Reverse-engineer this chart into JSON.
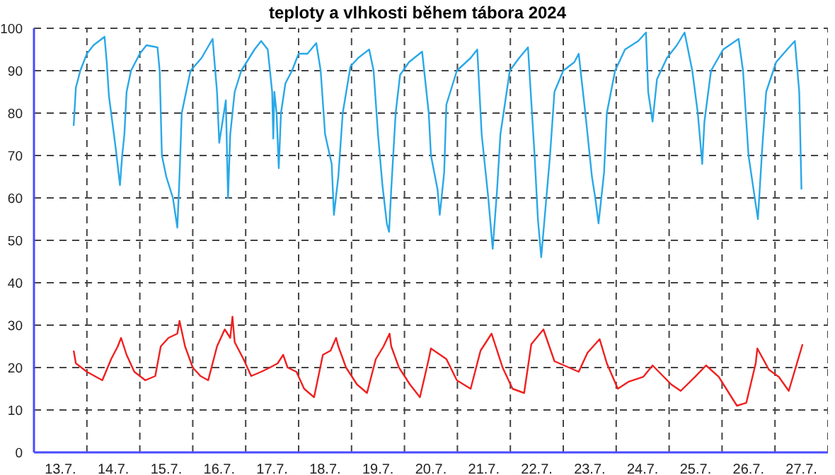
{
  "chart_data": {
    "type": "line",
    "title": "teploty a vlhkosti během tábora 2024",
    "xlim": [
      "2024-07-13T00:00",
      "2024-07-28T00:00"
    ],
    "xticks": [
      {
        "value": "2024-07-13T12:00",
        "label": "13.7."
      },
      {
        "value": "2024-07-14T00:00",
        "label": null
      },
      {
        "value": "2024-07-14T12:00",
        "label": "14.7."
      },
      {
        "value": "2024-07-15T00:00",
        "label": null
      },
      {
        "value": "2024-07-15T12:00",
        "label": "15.7."
      },
      {
        "value": "2024-07-16T00:00",
        "label": null
      },
      {
        "value": "2024-07-16T12:00",
        "label": "16.7."
      },
      {
        "value": "2024-07-17T00:00",
        "label": null
      },
      {
        "value": "2024-07-17T12:00",
        "label": "17.7."
      },
      {
        "value": "2024-07-18T00:00",
        "label": null
      },
      {
        "value": "2024-07-18T12:00",
        "label": "18.7."
      },
      {
        "value": "2024-07-19T00:00",
        "label": null
      },
      {
        "value": "2024-07-19T12:00",
        "label": "19.7."
      },
      {
        "value": "2024-07-20T00:00",
        "label": null
      },
      {
        "value": "2024-07-20T12:00",
        "label": "20.7."
      },
      {
        "value": "2024-07-21T00:00",
        "label": null
      },
      {
        "value": "2024-07-21T12:00",
        "label": "21.7."
      },
      {
        "value": "2024-07-22T00:00",
        "label": null
      },
      {
        "value": "2024-07-22T12:00",
        "label": "22.7."
      },
      {
        "value": "2024-07-23T00:00",
        "label": null
      },
      {
        "value": "2024-07-23T12:00",
        "label": "23.7."
      },
      {
        "value": "2024-07-24T00:00",
        "label": null
      },
      {
        "value": "2024-07-24T12:00",
        "label": "24.7."
      },
      {
        "value": "2024-07-25T00:00",
        "label": null
      },
      {
        "value": "2024-07-25T12:00",
        "label": "25.7."
      },
      {
        "value": "2024-07-26T00:00",
        "label": null
      },
      {
        "value": "2024-07-26T12:00",
        "label": "26.7."
      },
      {
        "value": "2024-07-27T00:00",
        "label": null
      },
      {
        "value": "2024-07-27T12:00",
        "label": "27.7."
      },
      {
        "value": "2024-07-28T00:00",
        "label": null
      }
    ],
    "ylim": [
      0,
      100
    ],
    "yticks": [
      0,
      10,
      20,
      30,
      40,
      50,
      60,
      70,
      80,
      90,
      100
    ],
    "grid": true,
    "line_style": "solid",
    "series": [
      {
        "color": "#29a8e8",
        "x": [
          "2024-07-13T18:00",
          "2024-07-13T19:00",
          "2024-07-13T21:00",
          "2024-07-14T00:00",
          "2024-07-14T03:00",
          "2024-07-14T08:00",
          "2024-07-14T09:00",
          "2024-07-14T10:00",
          "2024-07-14T12:00",
          "2024-07-14T13:00",
          "2024-07-14T15:00",
          "2024-07-14T16:00",
          "2024-07-14T17:00",
          "2024-07-14T18:00",
          "2024-07-14T20:00",
          "2024-07-15T00:00",
          "2024-07-15T03:00",
          "2024-07-15T08:00",
          "2024-07-15T09:00",
          "2024-07-15T10:00",
          "2024-07-15T12:00",
          "2024-07-15T15:00",
          "2024-07-15T17:00",
          "2024-07-15T18:00",
          "2024-07-15T19:00",
          "2024-07-15T23:00",
          "2024-07-16T04:00",
          "2024-07-16T09:00",
          "2024-07-16T11:00",
          "2024-07-16T12:00",
          "2024-07-16T15:00",
          "2024-07-16T16:00",
          "2024-07-16T17:00",
          "2024-07-16T19:00",
          "2024-07-16T22:00",
          "2024-07-17T04:00",
          "2024-07-17T07:00",
          "2024-07-17T10:00",
          "2024-07-17T12:00",
          "2024-07-17T12:30",
          "2024-07-17T13:00",
          "2024-07-17T14:00",
          "2024-07-17T15:00",
          "2024-07-17T16:00",
          "2024-07-17T18:00",
          "2024-07-17T21:00",
          "2024-07-18T00:00",
          "2024-07-18T04:00",
          "2024-07-18T08:00",
          "2024-07-18T10:00",
          "2024-07-18T12:00",
          "2024-07-18T15:00",
          "2024-07-18T16:00",
          "2024-07-18T18:00",
          "2024-07-18T20:00",
          "2024-07-18T23:30",
          "2024-07-19T03:00",
          "2024-07-19T08:00",
          "2024-07-19T10:00",
          "2024-07-19T12:00",
          "2024-07-19T14:00",
          "2024-07-19T16:00",
          "2024-07-19T17:00",
          "2024-07-19T18:00",
          "2024-07-19T20:00",
          "2024-07-19T22:00",
          "2024-07-20T02:00",
          "2024-07-20T08:00",
          "2024-07-20T11:00",
          "2024-07-20T12:00",
          "2024-07-20T15:00",
          "2024-07-20T16:00",
          "2024-07-20T18:00",
          "2024-07-20T19:00",
          "2024-07-20T23:45",
          "2024-07-21T06:00",
          "2024-07-21T09:00",
          "2024-07-21T11:00",
          "2024-07-21T14:00",
          "2024-07-21T16:00",
          "2024-07-21T18:00",
          "2024-07-21T19:30",
          "2024-07-21T23:45",
          "2024-07-22T04:00",
          "2024-07-22T08:00",
          "2024-07-22T11:00",
          "2024-07-22T12:30",
          "2024-07-22T14:00",
          "2024-07-22T16:00",
          "2024-07-22T18:00",
          "2024-07-22T20:00",
          "2024-07-23T00:00",
          "2024-07-23T05:00",
          "2024-07-23T07:00",
          "2024-07-23T10:00",
          "2024-07-23T13:00",
          "2024-07-23T14:30",
          "2024-07-23T16:00",
          "2024-07-23T18:30",
          "2024-07-23T19:45",
          "2024-07-23T23:30",
          "2024-07-24T04:00",
          "2024-07-24T10:00",
          "2024-07-24T13:30",
          "2024-07-24T14:30",
          "2024-07-24T16:30",
          "2024-07-24T18:30",
          "2024-07-24T23:00",
          "2024-07-25T03:30",
          "2024-07-25T07:00",
          "2024-07-25T10:30",
          "2024-07-25T13:00",
          "2024-07-25T15:00",
          "2024-07-25T16:00",
          "2024-07-25T19:00",
          "2024-07-26T00:30",
          "2024-07-26T07:30",
          "2024-07-26T09:30",
          "2024-07-26T12:00",
          "2024-07-26T16:15",
          "2024-07-26T18:15",
          "2024-07-26T20:00",
          "2024-07-27T00:30",
          "2024-07-27T05:30",
          "2024-07-27T09:00",
          "2024-07-27T11:00",
          "2024-07-27T12:00"
        ],
        "values": [
          77,
          86,
          90,
          94,
          96,
          98,
          92,
          84,
          76,
          72,
          63,
          70,
          75,
          85,
          90,
          94,
          96,
          95.5,
          90,
          70,
          65,
          60,
          53,
          65,
          80,
          90,
          93,
          97.5,
          85,
          73,
          83,
          60,
          75,
          85,
          90,
          95,
          97,
          95,
          85,
          74,
          85,
          80,
          67,
          80,
          87,
          90,
          94,
          94,
          96.5,
          90,
          75,
          68,
          56,
          65,
          80,
          91,
          93,
          95,
          90,
          75,
          63,
          54,
          52,
          62,
          80,
          89,
          92,
          94.5,
          80,
          70,
          62,
          56,
          66,
          82,
          90,
          93,
          95,
          75,
          60,
          48,
          62,
          75,
          90,
          93,
          95.5,
          70,
          55,
          46,
          58,
          70,
          85,
          90,
          92,
          94,
          80,
          65,
          60,
          54,
          66,
          80,
          90,
          95,
          97,
          99,
          85,
          78,
          88,
          93,
          96,
          99,
          90,
          80,
          68,
          78,
          90,
          95,
          97.5,
          90,
          70,
          55,
          72,
          85,
          92,
          95,
          97,
          85,
          62
        ]
      },
      {
        "color": "#f02020",
        "x": [
          "2024-07-13T18:00",
          "2024-07-13T19:00",
          "2024-07-14T00:00",
          "2024-07-14T07:00",
          "2024-07-14T11:00",
          "2024-07-14T14:00",
          "2024-07-14T15:30",
          "2024-07-14T18:00",
          "2024-07-14T21:30",
          "2024-07-15T02:30",
          "2024-07-15T07:00",
          "2024-07-15T09:30",
          "2024-07-15T13:00",
          "2024-07-15T17:00",
          "2024-07-15T18:00",
          "2024-07-15T20:30",
          "2024-07-16T00:00",
          "2024-07-16T03:30",
          "2024-07-16T07:00",
          "2024-07-16T11:00",
          "2024-07-16T14:30",
          "2024-07-16T17:00",
          "2024-07-16T18:00",
          "2024-07-16T19:00",
          "2024-07-16T23:00",
          "2024-07-17T02:30",
          "2024-07-17T07:00",
          "2024-07-17T11:00",
          "2024-07-17T14:30",
          "2024-07-17T17:00",
          "2024-07-17T19:00",
          "2024-07-17T23:00",
          "2024-07-18T02:30",
          "2024-07-18T07:00",
          "2024-07-18T11:00",
          "2024-07-18T14:30",
          "2024-07-18T17:00",
          "2024-07-18T18:00",
          "2024-07-18T21:30",
          "2024-07-19T02:30",
          "2024-07-19T07:00",
          "2024-07-19T11:00",
          "2024-07-19T14:30",
          "2024-07-19T17:15",
          "2024-07-19T18:00",
          "2024-07-19T21:30",
          "2024-07-20T02:30",
          "2024-07-20T07:00",
          "2024-07-20T11:00",
          "2024-07-20T12:00",
          "2024-07-20T19:00",
          "2024-07-20T23:45",
          "2024-07-21T06:00",
          "2024-07-21T10:30",
          "2024-07-21T15:30",
          "2024-07-21T20:30",
          "2024-07-22T01:00",
          "2024-07-22T06:15",
          "2024-07-22T09:30",
          "2024-07-22T15:00",
          "2024-07-22T20:00",
          "2024-07-23T07:00",
          "2024-07-23T11:00",
          "2024-07-23T16:30",
          "2024-07-23T19:45",
          "2024-07-24T00:45",
          "2024-07-24T05:45",
          "2024-07-24T12:15",
          "2024-07-24T16:30",
          "2024-07-25T01:00",
          "2024-07-25T05:15",
          "2024-07-25T11:45",
          "2024-07-25T16:45",
          "2024-07-25T22:30",
          "2024-07-26T06:45",
          "2024-07-26T11:00",
          "2024-07-26T15:15",
          "2024-07-26T16:00",
          "2024-07-26T21:15",
          "2024-07-27T01:45",
          "2024-07-27T06:15",
          "2024-07-27T12:30"
        ],
        "values": [
          24,
          21,
          19,
          17,
          22,
          25,
          27,
          23,
          19,
          17,
          18,
          25,
          27,
          28,
          31,
          25,
          20,
          18,
          17,
          25,
          29,
          27,
          32,
          26,
          22,
          18,
          19,
          20,
          21,
          23,
          20,
          19,
          15,
          13,
          23,
          24,
          27,
          25,
          20,
          16,
          14,
          22,
          25,
          28,
          25,
          20,
          16,
          13,
          22,
          24.5,
          22,
          17,
          15,
          24,
          28,
          20,
          15,
          14,
          25.5,
          29,
          21.5,
          19,
          23.5,
          26.7,
          21,
          15,
          16.7,
          17.8,
          20.5,
          16,
          14.5,
          17.8,
          20.5,
          17.8,
          11,
          11.7,
          21,
          24.5,
          19.5,
          17.8,
          14.5,
          25.5
        ]
      }
    ]
  }
}
